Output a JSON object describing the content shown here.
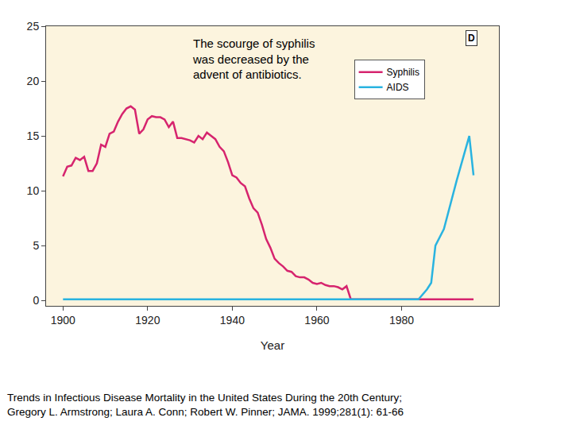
{
  "chart_data": {
    "type": "line",
    "x_label": "Year",
    "annotation_lines": [
      "The scourge of syphilis",
      "was decreased by the",
      "advent of antibiotics."
    ],
    "panel_label": "D",
    "caption_lines": [
      "Trends in Infectious Disease Mortality in the United States During the 20th Century;",
      "Gregory L. Armstrong; Laura A. Conn; Robert W. Pinner; JAMA. 1999;281(1): 61-66"
    ],
    "xlim": [
      1896,
      2003
    ],
    "xticks": [
      1900,
      1920,
      1940,
      1960,
      1980
    ],
    "ylim": [
      -0.5,
      25
    ],
    "yticks": [
      0,
      5,
      10,
      15,
      20,
      25
    ],
    "grid": false,
    "legend": "upper right",
    "series": [
      {
        "name": "Syphilis",
        "color": "#d6246e",
        "x": [
          1900,
          1901,
          1902,
          1903,
          1904,
          1905,
          1906,
          1907,
          1908,
          1909,
          1910,
          1911,
          1912,
          1913,
          1914,
          1915,
          1916,
          1917,
          1918,
          1919,
          1920,
          1921,
          1922,
          1923,
          1924,
          1925,
          1926,
          1927,
          1928,
          1929,
          1930,
          1931,
          1932,
          1933,
          1934,
          1935,
          1936,
          1937,
          1938,
          1939,
          1940,
          1941,
          1942,
          1943,
          1944,
          1945,
          1946,
          1947,
          1948,
          1949,
          1950,
          1951,
          1952,
          1953,
          1954,
          1955,
          1956,
          1957,
          1958,
          1959,
          1960,
          1961,
          1962,
          1963,
          1964,
          1965,
          1966,
          1967,
          1968,
          1970,
          1980,
          1990,
          1997
        ],
        "values": [
          11.3,
          12.2,
          12.3,
          13.0,
          12.8,
          13.1,
          11.8,
          11.8,
          12.5,
          14.2,
          14.0,
          15.2,
          15.4,
          16.3,
          17.0,
          17.5,
          17.7,
          17.4,
          15.2,
          15.6,
          16.5,
          16.8,
          16.7,
          16.7,
          16.5,
          15.8,
          16.3,
          14.8,
          14.8,
          14.7,
          14.6,
          14.4,
          15.0,
          14.7,
          15.3,
          15.0,
          14.7,
          14.0,
          13.6,
          12.6,
          11.4,
          11.2,
          10.7,
          10.4,
          9.3,
          8.4,
          8.0,
          6.9,
          5.6,
          4.8,
          3.8,
          3.4,
          3.1,
          2.7,
          2.6,
          2.2,
          2.1,
          2.1,
          1.9,
          1.6,
          1.5,
          1.6,
          1.4,
          1.3,
          1.3,
          1.2,
          1.0,
          1.3,
          0.1,
          0.1,
          0.1,
          0.1,
          0.1
        ]
      },
      {
        "name": "AIDS",
        "color": "#29b3e0",
        "x": [
          1900,
          1984,
          1986,
          1987,
          1988,
          1990,
          1993,
          1996,
          1997
        ],
        "values": [
          0.1,
          0.1,
          1.0,
          1.6,
          5.0,
          6.5,
          10.9,
          15.0,
          11.4
        ]
      }
    ]
  }
}
